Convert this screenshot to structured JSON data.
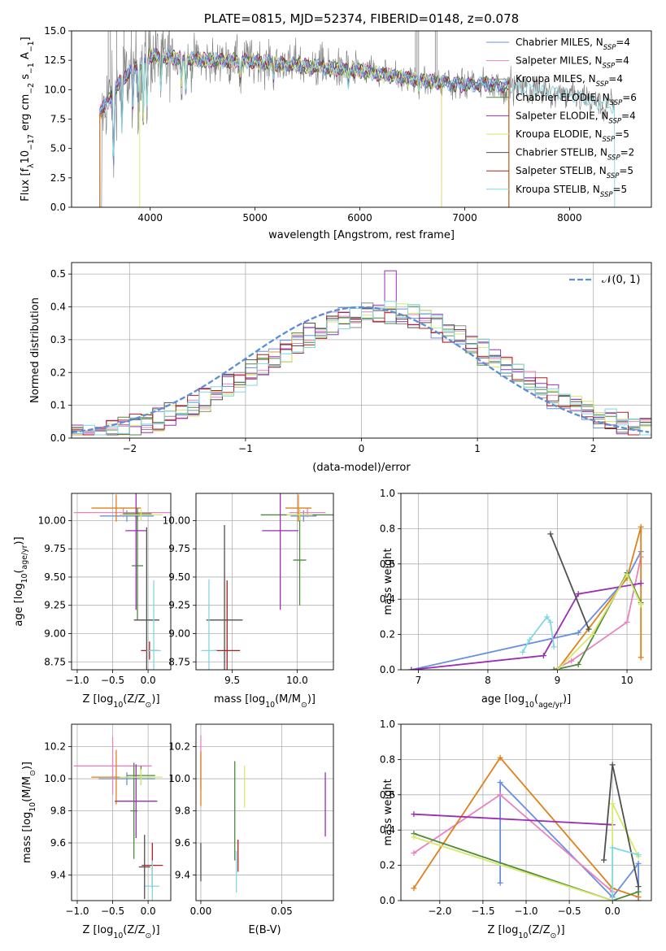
{
  "figure": {
    "title": "PLATE=0815, MJD=52374, FIBERID=0148, z=0.078"
  },
  "colors": {
    "chabrier_miles": "#6a8fe0",
    "salpeter_miles": "#e882c0",
    "kroupa_miles": "#8c8c8c",
    "chabrier_elodie": "#4d8a3c",
    "salpeter_elodie": "#9a2eb5",
    "kroupa_elodie": "#d8e86a",
    "chabrier_stelib": "#505050",
    "salpeter_stelib": "#b02020",
    "kroupa_stelib": "#80d8e0",
    "orange": "#e0801a",
    "gauss": "#5b8ed6"
  },
  "chart_data": [
    {
      "id": "spectrum",
      "type": "line",
      "title": "PLATE=0815, MJD=52374, FIBERID=0148, z=0.078",
      "xlabel": "wavelength [Angstrom, rest frame]",
      "ylabel_parts": [
        "Flux [f",
        "λ",
        "10",
        "−17",
        " erg cm",
        "−2",
        " s",
        "−1",
        " A",
        "−1",
        "]"
      ],
      "xlim": [
        3250,
        8780
      ],
      "ylim": [
        0,
        15
      ],
      "xticks": [
        4000,
        5000,
        6000,
        7000,
        8000
      ],
      "yticks": [
        0.0,
        2.5,
        5.0,
        7.5,
        10.0,
        12.5,
        15.0
      ],
      "legend_position": "upper-right",
      "legend": [
        {
          "label": "Chabrier MILES, N",
          "sub": "SSP",
          "suffix": "=4",
          "color": "#6a8fe0"
        },
        {
          "label": "Salpeter MILES, N",
          "sub": "SSP",
          "suffix": "=4",
          "color": "#e882c0"
        },
        {
          "label": "Kroupa MILES, N",
          "sub": "SSP",
          "suffix": "=4",
          "color": "#8c8c8c"
        },
        {
          "label": "Chabrier ELODIE, N",
          "sub": "SSP",
          "suffix": "=6",
          "color": "#4d8a3c"
        },
        {
          "label": "Salpeter ELODIE, N",
          "sub": "SSP",
          "suffix": "=4",
          "color": "#9a2eb5"
        },
        {
          "label": "Kroupa ELODIE, N",
          "sub": "SSP",
          "suffix": "=5",
          "color": "#d8e86a"
        },
        {
          "label": "Chabrier STELIB, N",
          "sub": "SSP",
          "suffix": "=2",
          "color": "#505050"
        },
        {
          "label": "Salpeter STELIB, N",
          "sub": "SSP",
          "suffix": "=5",
          "color": "#b02020"
        },
        {
          "label": "Kroupa STELIB, N",
          "sub": "SSP",
          "suffix": "=5",
          "color": "#80d8e0"
        }
      ],
      "continuum": [
        [
          3520,
          8.2
        ],
        [
          3600,
          9.0
        ],
        [
          3700,
          10.5
        ],
        [
          3800,
          11.5
        ],
        [
          3900,
          12.2
        ],
        [
          4000,
          12.9
        ],
        [
          4200,
          12.7
        ],
        [
          4500,
          12.5
        ],
        [
          5000,
          12.4
        ],
        [
          5500,
          12.0
        ],
        [
          6000,
          11.6
        ],
        [
          6500,
          10.9
        ],
        [
          6800,
          10.6
        ],
        [
          7000,
          10.4
        ],
        [
          7200,
          10.5
        ],
        [
          7500,
          10.2
        ],
        [
          8000,
          9.6
        ],
        [
          8300,
          8.8
        ],
        [
          8430,
          8.5
        ]
      ],
      "model_ranges": [
        [
          3520,
          7420
        ],
        [
          3520,
          6780
        ],
        [
          3520,
          8430
        ],
        [
          3520,
          7420
        ],
        [
          3520,
          7420
        ],
        [
          3900,
          6780
        ],
        [
          3520,
          7420
        ],
        [
          3520,
          7420
        ],
        [
          3520,
          8430
        ]
      ]
    },
    {
      "id": "residuals",
      "type": "line",
      "xlabel": "(data-model)/error",
      "ylabel": "Normed distribution",
      "xlim": [
        -2.5,
        2.5
      ],
      "ylim": [
        0,
        0.535
      ],
      "xticks": [
        -2,
        -1,
        0,
        1,
        2
      ],
      "yticks": [
        0.0,
        0.1,
        0.2,
        0.3,
        0.4,
        0.5
      ],
      "gauss_label": "𝒩(0, 1)",
      "legend_position": "upper-right",
      "grid": true,
      "bin_width": 0.1,
      "histogram_envelope_peak": 0.51,
      "histogram_peak_x": 0.25
    },
    {
      "id": "age_vs_Z",
      "type": "scatter",
      "xlabel_parts": [
        "Z [log",
        "10",
        "(Z/Z",
        "⊙",
        ")]"
      ],
      "ylabel_parts": [
        "age  [log",
        "10",
        "(",
        "age/yr",
        ")]"
      ],
      "xlim": [
        -1.08,
        0.32
      ],
      "ylim": [
        8.68,
        10.24
      ],
      "xticks": [
        -1.0,
        -0.5,
        0.0
      ],
      "yticks": [
        8.75,
        9.0,
        9.25,
        9.5,
        9.75,
        10.0
      ],
      "grid": true,
      "points": [
        {
          "x": -0.3,
          "xerr": 0.38,
          "y": 10.04,
          "yerr": 0.05,
          "color": "#6a8fe0"
        },
        {
          "x": -0.35,
          "xerr": 0.7,
          "y": 10.07,
          "yerr": 0.04,
          "color": "#e882c0"
        },
        {
          "x": -0.45,
          "xerr": 0.35,
          "y": 10.11,
          "yerr": 0.12,
          "color": "#e0801a"
        },
        {
          "x": -0.15,
          "xerr": 0.2,
          "y": 10.06,
          "yerr": 0.05,
          "color": "#4d8a3c"
        },
        {
          "x": -0.15,
          "xerr": 0.08,
          "y": 9.6,
          "yerr": 0.48,
          "color": "#4d8a3c"
        },
        {
          "x": -0.17,
          "xerr": 0.15,
          "y": 9.91,
          "yerr": 0.7,
          "color": "#9a2eb5"
        },
        {
          "x": -0.1,
          "xerr": 0.3,
          "y": 10.05,
          "yerr": 0.05,
          "color": "#d8e86a"
        },
        {
          "x": -0.02,
          "xerr": 0.18,
          "y": 9.12,
          "yerr": 0.82,
          "color": "#505050"
        },
        {
          "x": 0.02,
          "xerr": 0.12,
          "y": 8.85,
          "yerr": 0.08,
          "color": "#b02020"
        },
        {
          "x": 0.08,
          "xerr": 0.1,
          "y": 8.85,
          "yerr": 0.62,
          "color": "#80d8e0"
        }
      ]
    },
    {
      "id": "age_vs_mass",
      "type": "scatter",
      "xlabel_parts": [
        "mass [log",
        "10",
        "(M/M",
        "⊙",
        ")]"
      ],
      "ylabel_parts": [],
      "xlim": [
        9.22,
        10.28
      ],
      "ylim": [
        8.68,
        10.24
      ],
      "xticks": [
        9.5,
        10.0
      ],
      "yticks": [
        8.75,
        9.0,
        9.25,
        9.5,
        9.75,
        10.0
      ],
      "grid": true,
      "points": [
        {
          "x": 10.05,
          "xerr": 0.1,
          "y": 10.04,
          "yerr": 0.05,
          "color": "#6a8fe0"
        },
        {
          "x": 10.08,
          "xerr": 0.14,
          "y": 10.07,
          "yerr": 0.04,
          "color": "#e882c0"
        },
        {
          "x": 10.01,
          "xerr": 0.1,
          "y": 10.11,
          "yerr": 0.12,
          "color": "#e0801a"
        },
        {
          "x": 10.02,
          "xerr": 0.3,
          "y": 10.05,
          "yerr": 0.05,
          "color": "#4d8a3c"
        },
        {
          "x": 10.02,
          "xerr": 0.05,
          "y": 9.65,
          "yerr": 0.4,
          "color": "#4d8a3c"
        },
        {
          "x": 9.87,
          "xerr": 0.14,
          "y": 9.91,
          "yerr": 0.7,
          "color": "#9a2eb5"
        },
        {
          "x": 10.02,
          "xerr": 0.1,
          "y": 10.05,
          "yerr": 0.05,
          "color": "#d8e86a"
        },
        {
          "x": 9.44,
          "xerr": 0.14,
          "y": 9.12,
          "yerr": 0.84,
          "color": "#505050"
        },
        {
          "x": 9.46,
          "xerr": 0.1,
          "y": 8.85,
          "yerr": 0.62,
          "color": "#b02020"
        },
        {
          "x": 9.32,
          "xerr": 0.06,
          "y": 8.85,
          "yerr": 0.63,
          "color": "#80d8e0"
        }
      ]
    },
    {
      "id": "mass_weight_vs_age",
      "type": "line",
      "xlabel_parts": [
        "age  [log",
        "10",
        "(",
        "age/yr",
        ")]"
      ],
      "ylabel": "mass weight",
      "xlim": [
        6.75,
        10.35
      ],
      "ylim": [
        0,
        1.0
      ],
      "xticks": [
        7,
        8,
        9,
        10
      ],
      "yticks": [
        0.0,
        0.2,
        0.4,
        0.6,
        0.8,
        1.0
      ],
      "grid": true,
      "series": [
        {
          "color": "#6a8fe0",
          "x": [
            6.9,
            9.3,
            10.0,
            10.2
          ],
          "y": [
            0.0,
            0.21,
            0.52,
            0.67
          ]
        },
        {
          "color": "#e882c0",
          "x": [
            8.95,
            9.2,
            10.0,
            10.2
          ],
          "y": [
            0.0,
            0.05,
            0.27,
            0.64
          ]
        },
        {
          "color": "#e0801a",
          "x": [
            9.0,
            10.0,
            10.2,
            10.2
          ],
          "y": [
            0.0,
            0.52,
            0.81,
            0.07
          ]
        },
        {
          "color": "#4d8a3c",
          "x": [
            8.95,
            9.3,
            10.0,
            10.2
          ],
          "y": [
            0.0,
            0.03,
            0.55,
            0.38
          ]
        },
        {
          "color": "#9a2eb5",
          "x": [
            6.9,
            8.8,
            9.3,
            10.2
          ],
          "y": [
            0.0,
            0.08,
            0.43,
            0.49
          ]
        },
        {
          "color": "#d8e86a",
          "x": [
            9.0,
            9.5,
            10.0,
            10.2
          ],
          "y": [
            0.0,
            0.2,
            0.54,
            0.37
          ]
        },
        {
          "color": "#505050",
          "x": [
            8.9,
            9.45
          ],
          "y": [
            0.77,
            0.23
          ]
        },
        {
          "color": "#80d8e0",
          "x": [
            8.5,
            8.6,
            8.85,
            8.9,
            8.95
          ],
          "y": [
            0.1,
            0.17,
            0.3,
            0.27,
            0.13
          ]
        }
      ]
    },
    {
      "id": "mass_vs_Z",
      "type": "scatter",
      "xlabel_parts": [
        "Z [log",
        "10",
        "(Z/Z",
        "⊙",
        ")]"
      ],
      "ylabel_parts": [
        "mass [log",
        "10",
        "(M/M",
        "⊙",
        ")]"
      ],
      "xlim": [
        -1.08,
        0.32
      ],
      "ylim": [
        9.24,
        10.34
      ],
      "xticks": [
        -1.0,
        -0.5,
        0.0
      ],
      "yticks": [
        9.4,
        9.6,
        9.8,
        10.0,
        10.2
      ],
      "grid": true,
      "points": [
        {
          "x": -0.3,
          "xerr": 0.4,
          "y": 10.0,
          "yerr": 0.04,
          "color": "#6a8fe0"
        },
        {
          "x": -0.5,
          "xerr": 0.55,
          "y": 10.08,
          "yerr": 0.18,
          "color": "#e882c0"
        },
        {
          "x": -0.45,
          "xerr": 0.35,
          "y": 10.01,
          "yerr": 0.17,
          "color": "#e0801a"
        },
        {
          "x": -0.1,
          "xerr": 0.2,
          "y": 10.02,
          "yerr": 0.06,
          "color": "#4d8a3c"
        },
        {
          "x": -0.2,
          "xerr": 0.05,
          "y": 9.8,
          "yerr": 0.3,
          "color": "#4d8a3c"
        },
        {
          "x": -0.17,
          "xerr": 0.3,
          "y": 9.86,
          "yerr": 0.23,
          "color": "#9a2eb5"
        },
        {
          "x": -0.1,
          "xerr": 0.3,
          "y": 10.01,
          "yerr": 0.05,
          "color": "#d8e86a"
        },
        {
          "x": -0.05,
          "xerr": 0.08,
          "y": 9.45,
          "yerr": 0.2,
          "color": "#505050"
        },
        {
          "x": 0.06,
          "xerr": 0.15,
          "y": 9.46,
          "yerr": 0.14,
          "color": "#b02020"
        },
        {
          "x": 0.06,
          "xerr": 0.1,
          "y": 9.33,
          "yerr": 0.16,
          "color": "#80d8e0"
        }
      ]
    },
    {
      "id": "mass_vs_ebv",
      "type": "scatter",
      "xlabel": "E(B-V)",
      "xlim": [
        -0.003,
        0.082
      ],
      "ylim": [
        9.24,
        10.34
      ],
      "xticks": [
        0.0,
        0.05
      ],
      "yticks": [
        9.4,
        9.6,
        9.8,
        10.0,
        10.2
      ],
      "grid": true,
      "points": [
        {
          "x": 0.0,
          "y": 10.1,
          "yerr": 0.17,
          "color": "#e882c0"
        },
        {
          "x": 0.0,
          "y": 10.0,
          "yerr": 0.17,
          "color": "#e0801a"
        },
        {
          "x": 0.0,
          "y": 9.48,
          "yerr": 0.12,
          "color": "#505050"
        },
        {
          "x": 0.021,
          "y": 9.8,
          "yerr": 0.31,
          "color": "#4d8a3c"
        },
        {
          "x": 0.023,
          "y": 9.52,
          "yerr": 0.1,
          "color": "#b02020"
        },
        {
          "x": 0.022,
          "y": 9.42,
          "yerr": 0.13,
          "color": "#80d8e0"
        },
        {
          "x": 0.027,
          "y": 9.95,
          "yerr": 0.13,
          "color": "#d8e86a"
        },
        {
          "x": 0.077,
          "y": 9.84,
          "yerr": 0.2,
          "color": "#9a2eb5"
        }
      ]
    },
    {
      "id": "mass_weight_vs_Z",
      "type": "line",
      "xlabel_parts": [
        "Z [log",
        "10",
        "(Z/Z",
        "⊙",
        ")]"
      ],
      "ylabel": "mass weight",
      "xlim": [
        -2.45,
        0.45
      ],
      "ylim": [
        0,
        1.0
      ],
      "xticks": [
        -2.0,
        -1.5,
        -1.0,
        -0.5,
        0.0
      ],
      "yticks": [
        0.0,
        0.2,
        0.4,
        0.6,
        0.8,
        1.0
      ],
      "grid": true,
      "series": [
        {
          "color": "#6a8fe0",
          "x": [
            -1.3,
            -1.3,
            0.0,
            0.3,
            0.3
          ],
          "y": [
            0.1,
            0.67,
            0.02,
            0.21,
            0.0
          ]
        },
        {
          "color": "#e882c0",
          "x": [
            -2.3,
            -1.3,
            0.0
          ],
          "y": [
            0.27,
            0.6,
            0.05
          ]
        },
        {
          "color": "#e0801a",
          "x": [
            -2.3,
            -1.3,
            0.0,
            0.3
          ],
          "y": [
            0.07,
            0.81,
            0.07,
            0.02
          ]
        },
        {
          "color": "#4d8a3c",
          "x": [
            -2.3,
            0.0,
            0.3
          ],
          "y": [
            0.38,
            0.0,
            0.05
          ]
        },
        {
          "color": "#9a2eb5",
          "x": [
            -2.3,
            0.0
          ],
          "y": [
            0.49,
            0.43
          ]
        },
        {
          "color": "#d8e86a",
          "x": [
            -2.3,
            0.0,
            0.0,
            0.3
          ],
          "y": [
            0.36,
            0.0,
            0.55,
            0.25
          ]
        },
        {
          "color": "#505050",
          "x": [
            -0.1,
            0.0,
            0.3
          ],
          "y": [
            0.23,
            0.77,
            0.08
          ]
        },
        {
          "color": "#80d8e0",
          "x": [
            0.0,
            0.0,
            0.3
          ],
          "y": [
            0.0,
            0.3,
            0.26
          ]
        }
      ]
    }
  ]
}
